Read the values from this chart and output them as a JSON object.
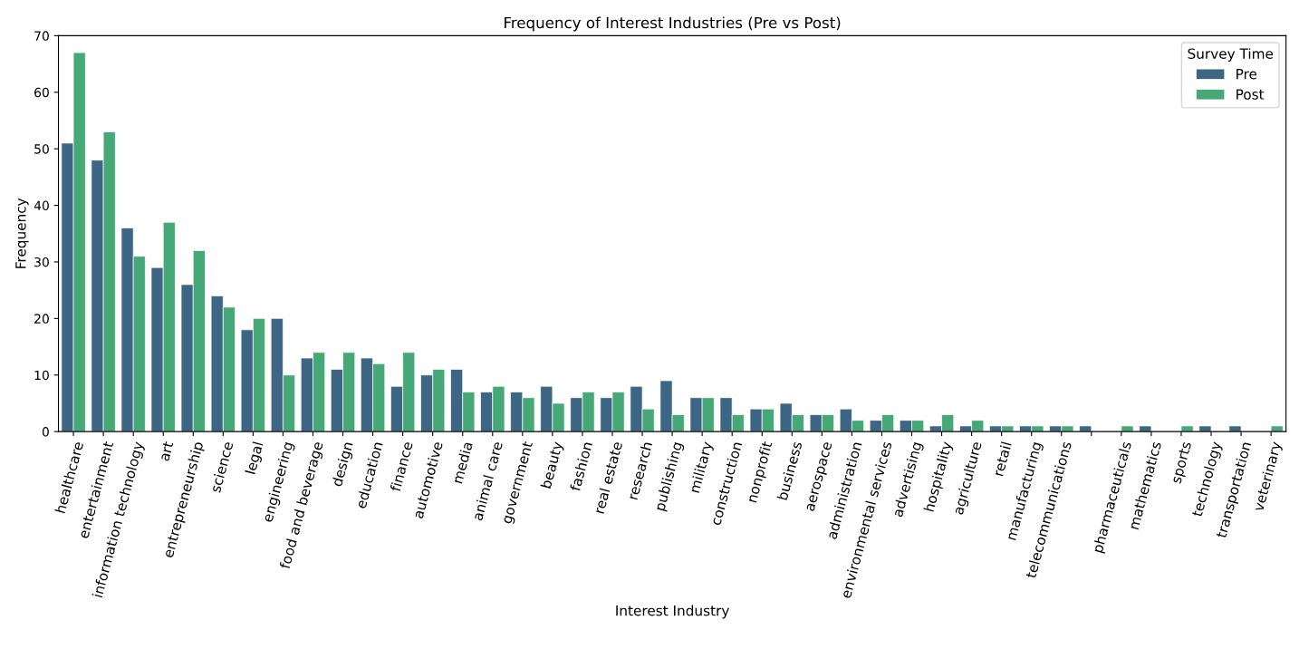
{
  "chart_data": {
    "type": "bar",
    "title": "Frequency of Interest Industries (Pre vs Post)",
    "xlabel": "Interest Industry",
    "ylabel": "Frequency",
    "legend_title": "Survey Time",
    "legend": "top right",
    "grid": false,
    "categories": [
      "healthcare",
      "entertainment",
      "information technology",
      "art",
      "entrepreneurship",
      "science",
      "legal",
      "engineering",
      "food and beverage",
      "design",
      "education",
      "finance",
      "automotive",
      "media",
      "animal care",
      "government",
      "beauty",
      "fashion",
      "real estate",
      "research",
      "publishing",
      "military",
      "construction",
      "nonprofit",
      "business",
      "aerospace",
      "administration",
      "environmental services",
      "advertising",
      "hospitality",
      "agriculture",
      "retail",
      "manufacturing",
      "telecommunications",
      null,
      "pharmaceuticals",
      "mathematics",
      "sports",
      "technology",
      "transportation",
      "veterinary"
    ],
    "series": [
      {
        "name": "Pre",
        "color": "#3d6584",
        "values": [
          51,
          48,
          36,
          29,
          26,
          24,
          18,
          20,
          13,
          11,
          13,
          8,
          10,
          11,
          7,
          7,
          8,
          6,
          6,
          8,
          9,
          6,
          6,
          4,
          5,
          3,
          4,
          2,
          2,
          1,
          1,
          1,
          1,
          1,
          1,
          0,
          1,
          0,
          1,
          1,
          0
        ]
      },
      {
        "name": "Post",
        "color": "#46a877",
        "values": [
          67,
          53,
          31,
          37,
          32,
          22,
          20,
          10,
          14,
          14,
          12,
          14,
          11,
          7,
          8,
          6,
          5,
          7,
          7,
          4,
          3,
          6,
          3,
          4,
          3,
          3,
          2,
          3,
          2,
          3,
          2,
          1,
          1,
          1,
          0,
          1,
          0,
          1,
          0,
          0,
          1
        ]
      }
    ],
    "ylim": [
      0,
      70
    ],
    "yticks": [
      0,
      10,
      20,
      30,
      40,
      50,
      60,
      70
    ]
  }
}
